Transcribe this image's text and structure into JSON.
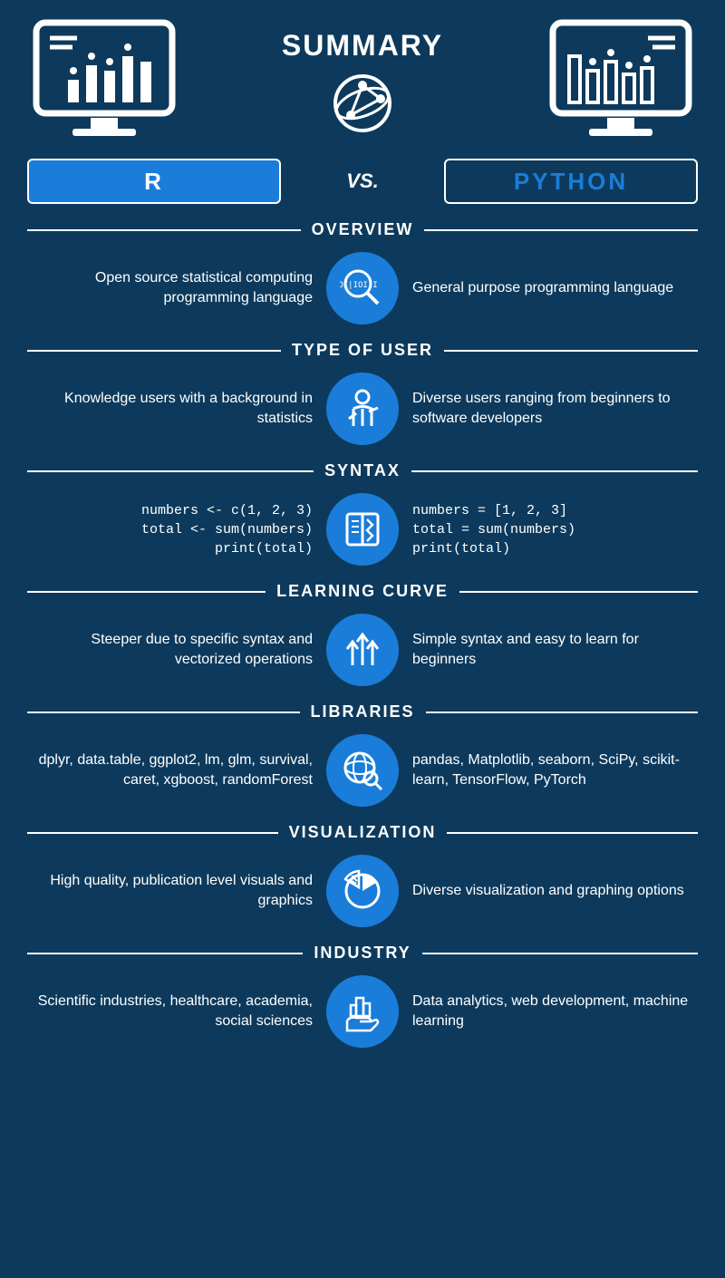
{
  "colors": {
    "bg": "#0d3a5c",
    "accent": "#1a7dd9",
    "text": "#ffffff"
  },
  "header": {
    "title": "SUMMARY",
    "left_label": "R",
    "vs": "VS.",
    "right_label": "PYTHON"
  },
  "sections": [
    {
      "title": "OVERVIEW",
      "icon": "binary-mag",
      "left": "Open source statistical computing programming language",
      "right": "General purpose programming language"
    },
    {
      "title": "TYPE OF USER",
      "icon": "person",
      "left": "Knowledge users with a background in statistics",
      "right": "Diverse users ranging from beginners to software developers"
    },
    {
      "title": "SYNTAX",
      "icon": "book",
      "left": "numbers <- c(1, 2, 3)\ntotal <- sum(numbers)\n        print(total)",
      "right": "numbers = [1, 2, 3]\ntotal = sum(numbers)\nprint(total)",
      "code": true
    },
    {
      "title": "LEARNING CURVE",
      "icon": "arrows-up",
      "left": "Steeper due to specific syntax and vectorized operations",
      "right": "Simple syntax and easy to learn for beginners"
    },
    {
      "title": "LIBRARIES",
      "icon": "globe-mag",
      "left": "dplyr, data.table, ggplot2, lm, glm, survival, caret, xgboost, randomForest",
      "right": "pandas, Matplotlib, seaborn, SciPy, scikit-learn, TensorFlow, PyTorch"
    },
    {
      "title": "VISUALIZATION",
      "icon": "pie",
      "left": "High quality, publication level visuals and graphics",
      "right": "Diverse visualization and graphing options"
    },
    {
      "title": "INDUSTRY",
      "icon": "hand-city",
      "left": "Scientific industries, healthcare, academia, social sciences",
      "right": "Data analytics, web development, machine learning"
    }
  ]
}
